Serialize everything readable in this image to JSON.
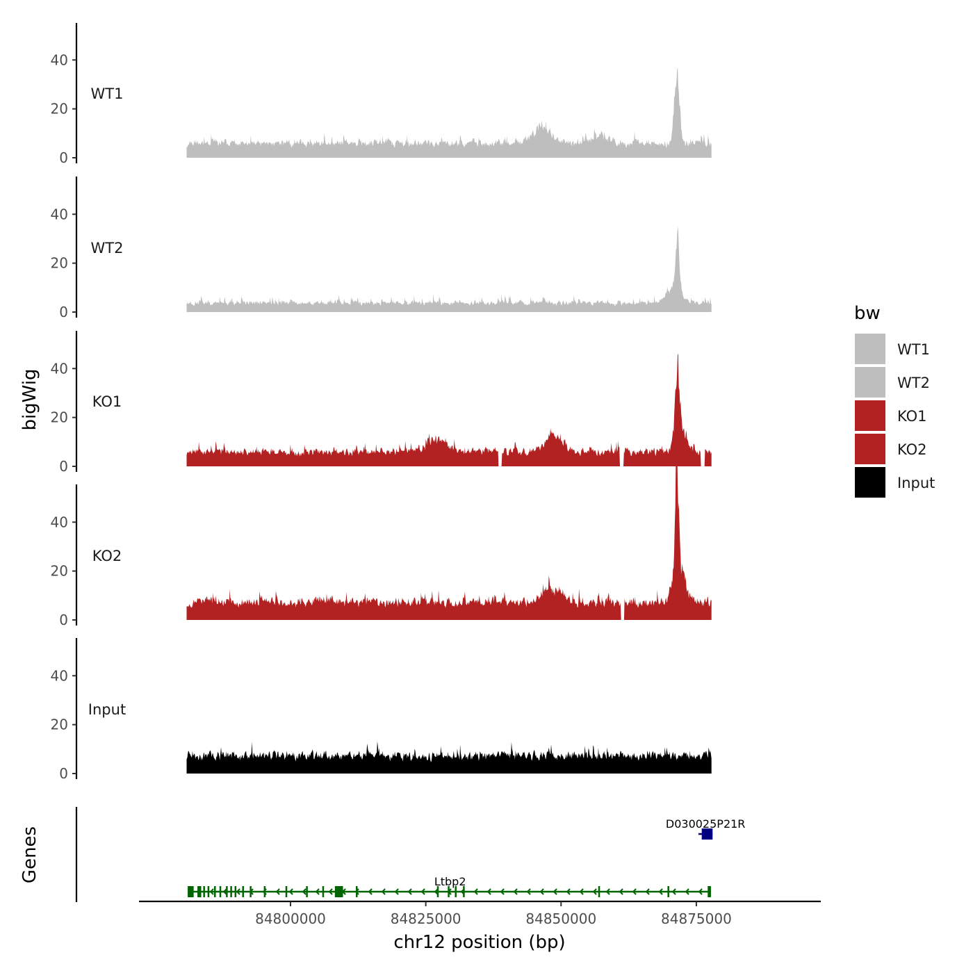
{
  "chart_data": {
    "type": "area",
    "ylabel": "bigWig",
    "genes_label": "Genes",
    "xlabel": "chr12 position (bp)",
    "xlim": [
      84772000,
      84898000
    ],
    "data_xrange": [
      84780800,
      84877800
    ],
    "x_ticks": [
      {
        "value": 84800000,
        "label": "84800000"
      },
      {
        "value": 84825000,
        "label": "84825000"
      },
      {
        "value": 84850000,
        "label": "84850000"
      },
      {
        "value": 84875000,
        "label": "84875000"
      }
    ],
    "ylim": [
      0,
      56
    ],
    "y_ticks": [
      {
        "value": 0,
        "label": "0"
      },
      {
        "value": 20,
        "label": "20"
      },
      {
        "value": 40,
        "label": "40"
      }
    ],
    "legend": {
      "title": "bw",
      "entries": [
        {
          "label": "WT1",
          "color": "#BEBEBE"
        },
        {
          "label": "WT2",
          "color": "#BEBEBE"
        },
        {
          "label": "KO1",
          "color": "#B22222"
        },
        {
          "label": "KO2",
          "color": "#B22222"
        },
        {
          "label": "Input",
          "color": "#000000"
        }
      ]
    },
    "series": [
      {
        "name": "WT1",
        "color": "#BEBEBE",
        "base": 5,
        "noise": 5,
        "seed": 11,
        "peaks": [
          {
            "x": 84871400,
            "height": 28,
            "width": 700
          },
          {
            "x": 84846200,
            "height": 7,
            "width": 2200
          },
          {
            "x": 84857000,
            "height": 3,
            "width": 2000
          }
        ],
        "gaps": []
      },
      {
        "name": "WT2",
        "color": "#BEBEBE",
        "base": 3,
        "noise": 4,
        "seed": 23,
        "peaks": [
          {
            "x": 84871500,
            "height": 24,
            "width": 500
          },
          {
            "x": 84870800,
            "height": 6,
            "width": 1800
          }
        ],
        "gaps": []
      },
      {
        "name": "KO1",
        "color": "#B22222",
        "base": 5,
        "noise": 5,
        "seed": 37,
        "peaks": [
          {
            "x": 84871500,
            "height": 28,
            "width": 600
          },
          {
            "x": 84872200,
            "height": 8,
            "width": 1500
          },
          {
            "x": 84827000,
            "height": 5,
            "width": 3000
          },
          {
            "x": 84848500,
            "height": 6,
            "width": 2000
          }
        ],
        "gaps": [
          {
            "from": 84838400,
            "to": 84839000
          },
          {
            "from": 84860800,
            "to": 84861600
          },
          {
            "from": 84875800,
            "to": 84876600
          }
        ]
      },
      {
        "name": "KO2",
        "color": "#B22222",
        "base": 6,
        "noise": 6,
        "seed": 53,
        "peaks": [
          {
            "x": 84871400,
            "height": 44,
            "width": 500
          },
          {
            "x": 84872000,
            "height": 12,
            "width": 1600
          },
          {
            "x": 84848500,
            "height": 5,
            "width": 2500
          }
        ],
        "gaps": [
          {
            "from": 84861000,
            "to": 84861700
          }
        ]
      },
      {
        "name": "Input",
        "color": "#000000",
        "base": 6,
        "noise": 6,
        "seed": 71,
        "peaks": [],
        "gaps": []
      }
    ],
    "genes": [
      {
        "name": "Ltbp2",
        "color": "#006400",
        "strand": "-",
        "start": 84781000,
        "end": 84877700,
        "exons": [
          {
            "start": 84781000,
            "end": 84782100
          },
          {
            "start": 84782800,
            "end": 84783500
          },
          {
            "start": 84808200,
            "end": 84809700
          },
          {
            "start": 84877100,
            "end": 84877700
          }
        ],
        "small_exons": [
          84781600,
          84784000,
          84784800,
          84786000,
          84787000,
          84788200,
          84789000,
          84789800,
          84791200,
          84792600,
          84795200,
          84799200,
          84803000,
          84806000,
          84812200,
          84827200,
          84829200,
          84830500,
          84832000,
          84857000,
          84869800
        ]
      },
      {
        "name": "D030025P21R",
        "color": "#000080",
        "strand": "-",
        "start": 84875400,
        "end": 84878000,
        "exons": [
          {
            "start": 84876000,
            "end": 84878000
          }
        ],
        "small_exons": []
      }
    ]
  }
}
